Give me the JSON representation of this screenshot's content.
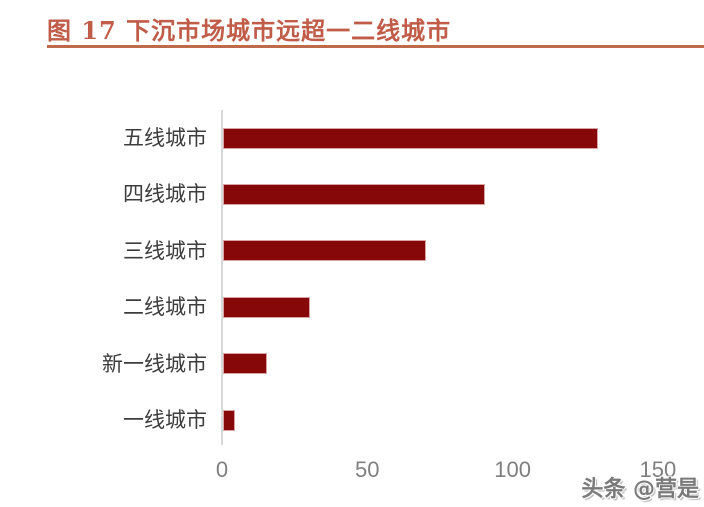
{
  "title": {
    "text": "图 17 下沉市场城市远超一二线城市"
  },
  "watermark": {
    "text": "头条 @营是"
  },
  "colors": {
    "title": "#C05C48",
    "title_rule": "#C06A4C",
    "bar": "#870808",
    "bar_border": "#D9A3A3",
    "axis_line": "#D9D9D9",
    "tick_label": "#7F7F7F",
    "category_label": "#3D3D3D",
    "watermark": "#7A7A7A"
  },
  "chart_data": {
    "type": "bar",
    "orientation": "horizontal",
    "title": "图 17 下沉市场城市远超一二线城市",
    "categories": [
      "五线城市",
      "四线城市",
      "三线城市",
      "二线城市",
      "新一线城市",
      "一线城市"
    ],
    "values": [
      129,
      90,
      70,
      30,
      15,
      4
    ],
    "x_ticks": [
      "0",
      "50",
      "100",
      "150"
    ],
    "x_tick_values": [
      0,
      50,
      100,
      150
    ],
    "xlim": [
      0,
      166
    ],
    "xlabel": "",
    "ylabel": "",
    "grid": false,
    "legend": false
  }
}
